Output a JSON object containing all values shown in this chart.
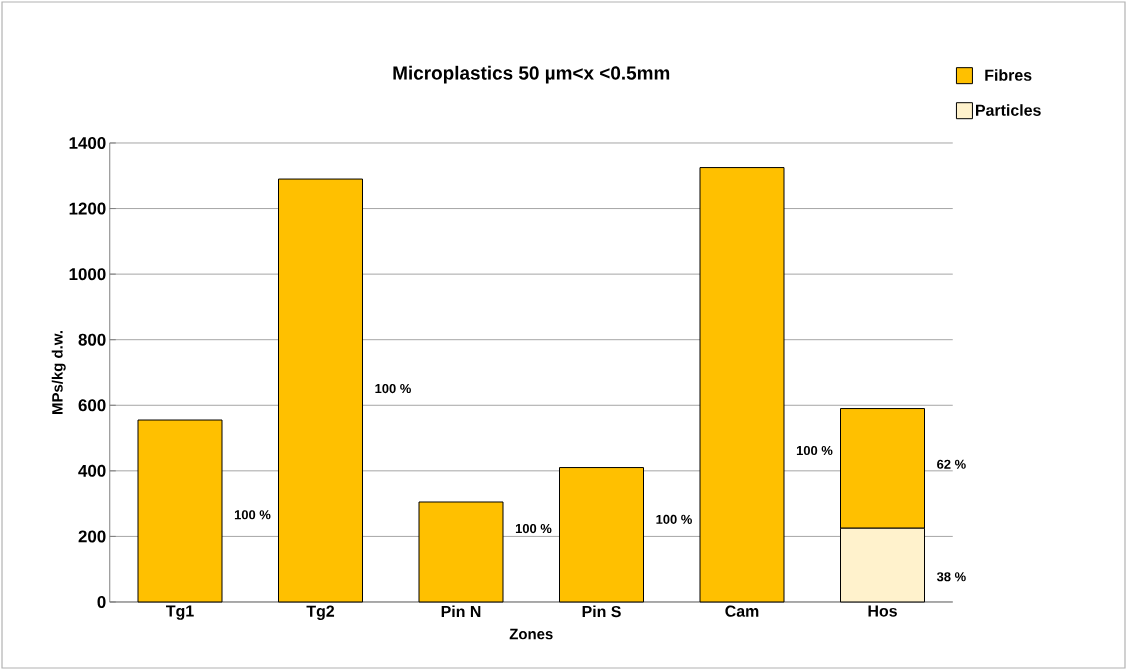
{
  "chart_data": {
    "type": "bar",
    "title": "Microplastics 50 µm<x <0.5mm",
    "xlabel": "Zones",
    "ylabel": "MPs/kg d.w.",
    "categories": [
      "Tg1",
      "Tg2",
      "Pin N",
      "Pin S",
      "Cam",
      "Hos"
    ],
    "stacked": true,
    "series": [
      {
        "name": "Particles",
        "color": "#fff2cc",
        "values": [
          null,
          null,
          null,
          null,
          null,
          225
        ]
      },
      {
        "name": "Fibres",
        "color": "#ffc000",
        "values": [
          555,
          1290,
          305,
          410,
          1325,
          365
        ]
      }
    ],
    "annotations": [
      "100 %",
      "100 %",
      "100 %",
      "100 %",
      "100 %",
      "62 %",
      "38 %"
    ],
    "ylim": [
      0,
      1400
    ],
    "yticks": [
      0,
      200,
      400,
      600,
      800,
      1000,
      1200,
      1400
    ],
    "grid": "y",
    "legend": "top right"
  }
}
